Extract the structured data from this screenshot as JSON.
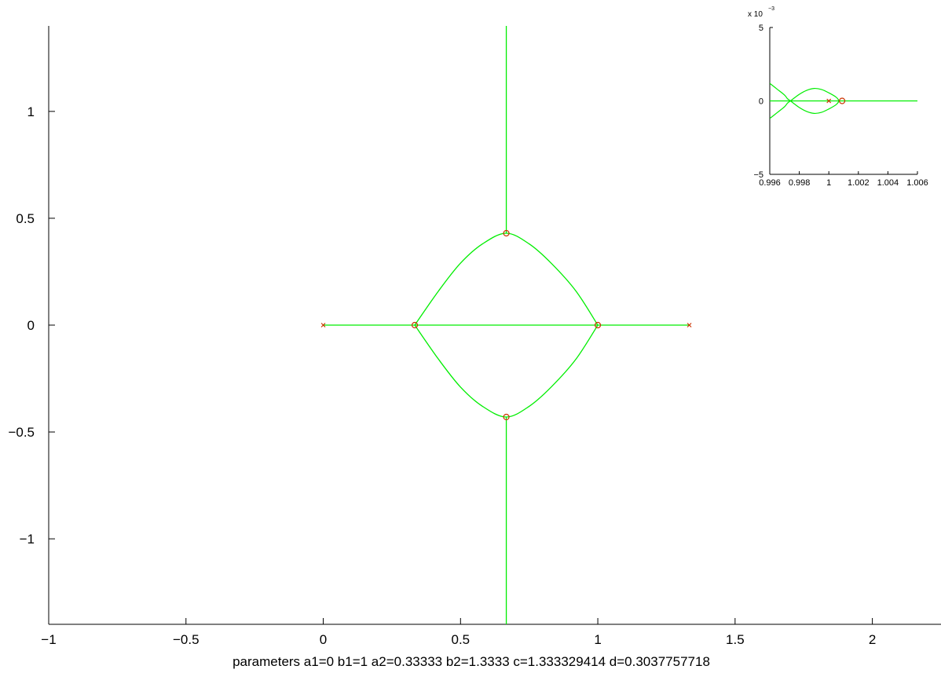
{
  "chart_data": [
    {
      "type": "line",
      "title": "",
      "xlabel": "parameters a1=0 b1=1 a2=0.33333 b2=1.3333 c=1.333329414 d=0.3037757718",
      "ylabel": "",
      "xlim": [
        -1,
        2.25
      ],
      "ylim": [
        -1.4,
        1.4
      ],
      "xticks": [
        -1,
        -0.5,
        0,
        0.5,
        1,
        1.5,
        2
      ],
      "xtick_labels": [
        "−1",
        "−0.5",
        "0",
        "0.5",
        "1",
        "1.5",
        "2"
      ],
      "yticks": [
        -1,
        -0.5,
        0,
        0.5,
        1
      ],
      "ytick_labels": [
        "−1",
        "−0.5",
        "0",
        "0.5",
        "1"
      ],
      "grid": false,
      "box": "left-bottom axes only",
      "colors": {
        "locus": "#00ee00",
        "poles": "#cc3300",
        "zeros": "#cc3300",
        "axes": "#000000"
      },
      "series": [
        {
          "points": [
            [
              0,
              0
            ],
            [
              1.3333,
              0
            ]
          ]
        },
        {
          "points": [
            [
              0.6667,
              1.4
            ],
            [
              0.6667,
              0.43
            ]
          ]
        },
        {
          "points": [
            [
              0.6667,
              -0.43
            ],
            [
              0.6667,
              -1.4
            ]
          ]
        },
        {
          "points": [
            [
              0.3333,
              0
            ],
            [
              0.42,
              0.16
            ],
            [
              0.5,
              0.29
            ],
            [
              0.58,
              0.38
            ],
            [
              0.6667,
              0.43
            ],
            [
              0.75,
              0.38
            ],
            [
              0.83,
              0.29
            ],
            [
              0.92,
              0.16
            ],
            [
              1.0,
              0
            ]
          ]
        },
        {
          "points": [
            [
              0.3333,
              0
            ],
            [
              0.42,
              -0.16
            ],
            [
              0.5,
              -0.29
            ],
            [
              0.58,
              -0.38
            ],
            [
              0.6667,
              -0.43
            ],
            [
              0.75,
              -0.38
            ],
            [
              0.83,
              -0.29
            ],
            [
              0.92,
              -0.16
            ],
            [
              1.0,
              0
            ]
          ]
        }
      ],
      "poles": [
        [
          0,
          0
        ],
        [
          1.3333,
          0
        ]
      ],
      "zeros": [
        [
          0.3333,
          0
        ],
        [
          1.0,
          0
        ],
        [
          0.6667,
          0.43
        ],
        [
          0.6667,
          -0.43
        ]
      ]
    },
    {
      "type": "line",
      "title": "",
      "xlabel": "",
      "ylabel": "",
      "exponent_label": "x 10",
      "exponent_power": "−3",
      "xlim": [
        0.996,
        1.006
      ],
      "ylim": [
        -5,
        5
      ],
      "xticks": [
        0.996,
        0.998,
        1,
        1.002,
        1.004,
        1.006
      ],
      "xtick_labels": [
        "0.996",
        "0.998",
        "1",
        "1.002",
        "1.004",
        "1.006"
      ],
      "yticks": [
        -5,
        0,
        5
      ],
      "ytick_labels": [
        "−5",
        "0",
        "5"
      ],
      "grid": false,
      "series": [
        {
          "points": [
            [
              0.996,
              0
            ],
            [
              1.006,
              0
            ]
          ]
        },
        {
          "points": [
            [
              0.996,
              1.2
            ],
            [
              0.9965,
              0.8
            ],
            [
              0.997,
              0.4
            ],
            [
              0.9972,
              0.15
            ],
            [
              0.9974,
              0
            ],
            [
              0.998,
              -0.45
            ],
            [
              0.9985,
              -0.72
            ],
            [
              0.999,
              -0.85
            ],
            [
              0.9995,
              -0.78
            ],
            [
              1.0,
              -0.55
            ],
            [
              1.0005,
              -0.25
            ],
            [
              1.0007,
              0
            ]
          ]
        },
        {
          "points": [
            [
              0.996,
              -1.2
            ],
            [
              0.9965,
              -0.8
            ],
            [
              0.997,
              -0.4
            ],
            [
              0.9972,
              -0.15
            ],
            [
              0.9974,
              0
            ],
            [
              0.998,
              0.45
            ],
            [
              0.9985,
              0.72
            ],
            [
              0.999,
              0.85
            ],
            [
              0.9995,
              0.78
            ],
            [
              1.0,
              0.55
            ],
            [
              1.0005,
              0.25
            ],
            [
              1.0007,
              0
            ]
          ]
        }
      ],
      "poles": [
        [
          1.0,
          0
        ]
      ],
      "zeros": [
        [
          1.0009,
          0
        ]
      ]
    }
  ]
}
